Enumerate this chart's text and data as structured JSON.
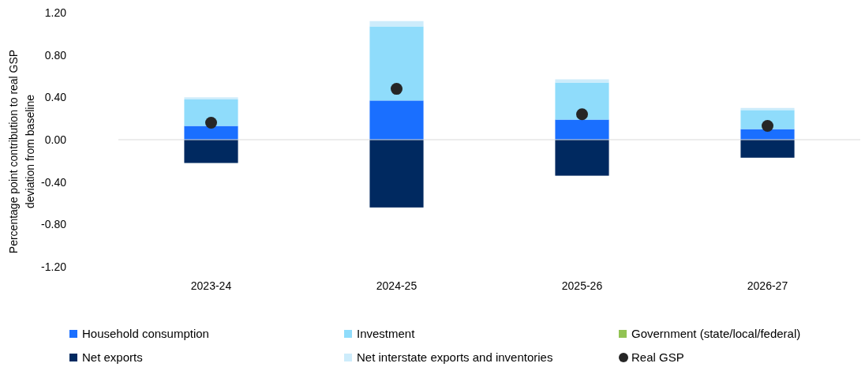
{
  "chart_data": {
    "type": "bar",
    "stacked": true,
    "ylabel": "Percentage point contribution to real GSP deviation from baseline",
    "categories": [
      "2023-24",
      "2024-25",
      "2025-26",
      "2026-27"
    ],
    "series": [
      {
        "name": "Household consumption",
        "color": "#1a6fff",
        "values": [
          0.13,
          0.37,
          0.19,
          0.1
        ]
      },
      {
        "name": "Investment",
        "color": "#8fdcfb",
        "values": [
          0.25,
          0.7,
          0.35,
          0.18
        ]
      },
      {
        "name": "Government (state/local/federal)",
        "color": "#92c353",
        "values": [
          0,
          0,
          0,
          0
        ]
      },
      {
        "name": "Net exports",
        "color": "#002960",
        "values": [
          -0.22,
          -0.64,
          -0.34,
          -0.17
        ]
      },
      {
        "name": "Net interstate exports and inventories",
        "color": "#cdecfb",
        "values": [
          0.02,
          0.05,
          0.03,
          0.02
        ]
      },
      {
        "name": "Real GSP",
        "type": "scatter",
        "color": "#262626",
        "marker": "circle",
        "x": [
          "2023-24",
          "2024-25",
          "2025-26",
          "2026-27"
        ],
        "values": [
          0.16,
          0.48,
          0.24,
          0.13
        ]
      }
    ],
    "ylim": [
      -1.2,
      1.2
    ],
    "yticks": [
      {
        "value": -1.2,
        "label": "-1.20"
      },
      {
        "value": -0.8,
        "label": "-0.80"
      },
      {
        "value": -0.4,
        "label": "-0.40"
      },
      {
        "value": 0,
        "label": "0.00"
      },
      {
        "value": 0.4,
        "label": "0.40"
      },
      {
        "value": 0.8,
        "label": "0.80"
      },
      {
        "value": 1.2,
        "label": "1.20"
      }
    ],
    "ref_lines": [
      {
        "axis": "y",
        "value": 0,
        "color": "#d9d9d9"
      }
    ],
    "grid": false,
    "legend": "bottom"
  }
}
